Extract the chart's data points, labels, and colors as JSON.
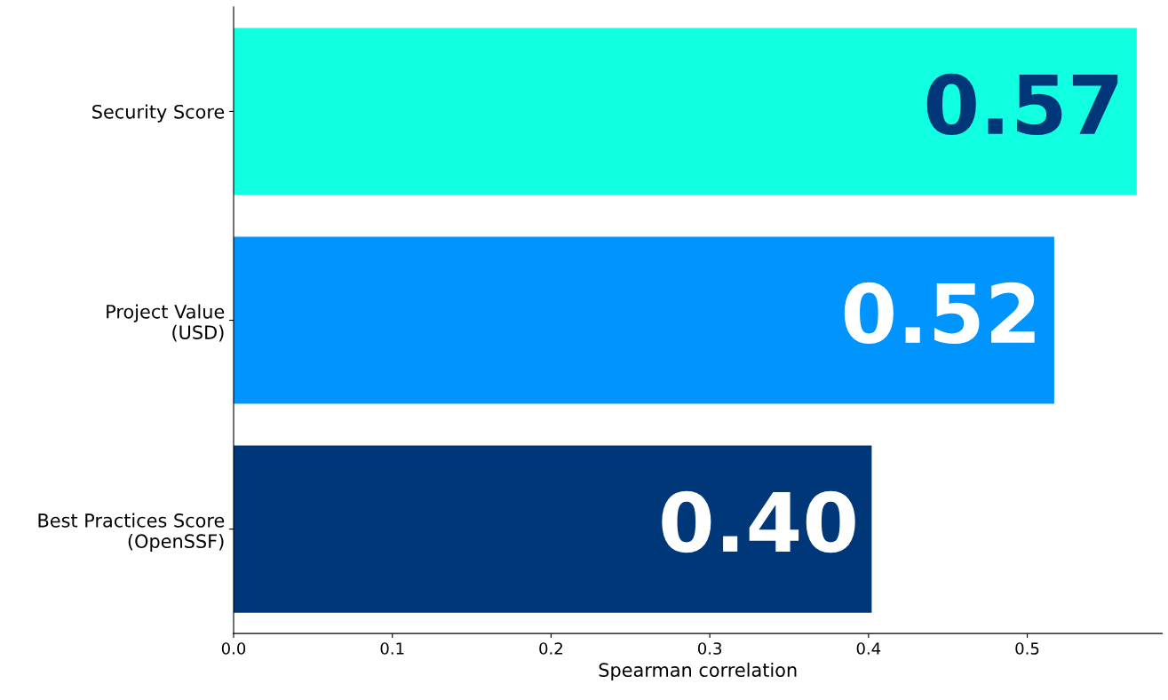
{
  "chart_data": {
    "type": "bar",
    "orientation": "horizontal",
    "xlabel": "Spearman correlation",
    "categories": [
      "Security Score",
      "Project Value\n(USD)",
      "Best Practices Score\n(OpenSSF)"
    ],
    "values": [
      0.569,
      0.517,
      0.402
    ],
    "value_labels": [
      "0.57",
      "0.52",
      "0.40"
    ],
    "colors": [
      "#10ffe0",
      "#0094ff",
      "#003778"
    ],
    "xlim": [
      0,
      0.585
    ],
    "xticks": [
      {
        "value": 0,
        "label": "0.0"
      },
      0.1,
      0.2,
      0.3,
      0.4,
      0.5
    ],
    "grid": false
  }
}
